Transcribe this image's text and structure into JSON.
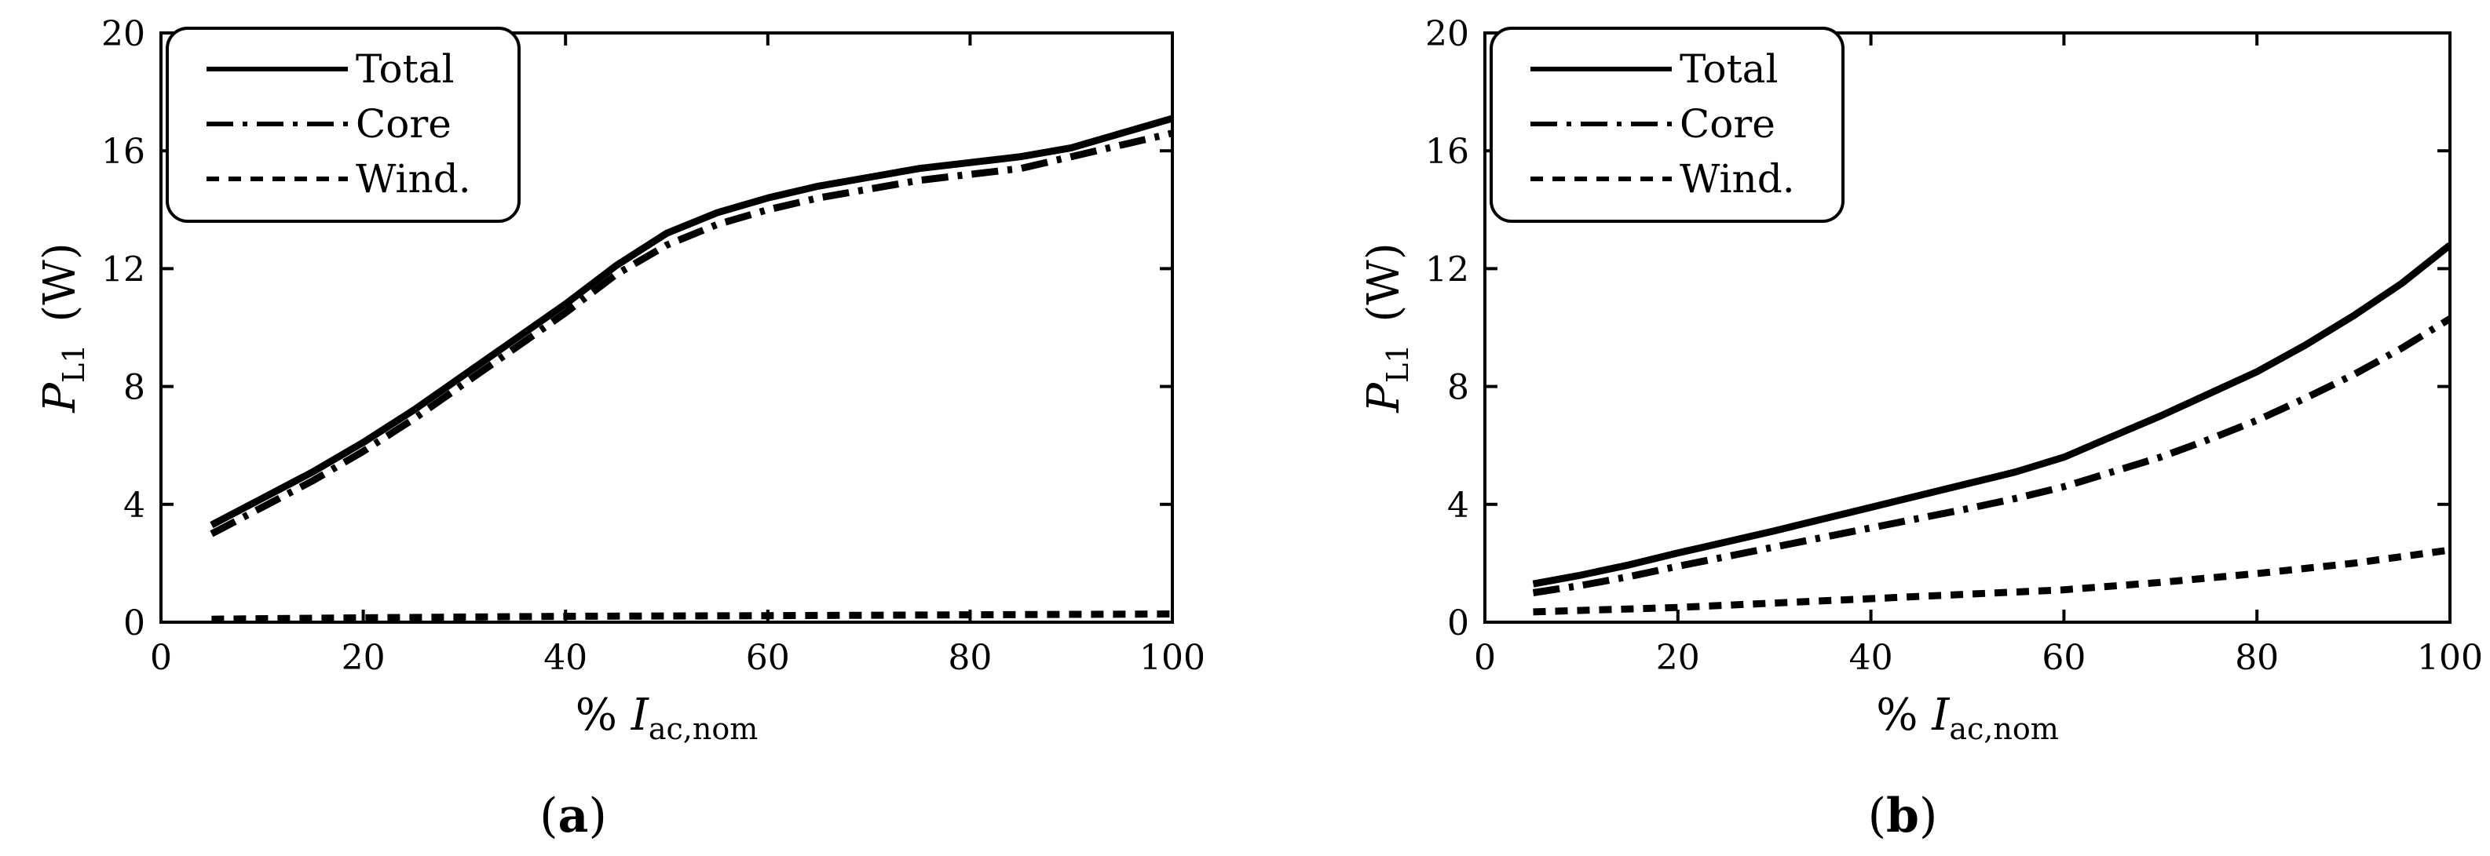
{
  "chart_data": [
    {
      "type": "line",
      "panel_label": "a",
      "ylabel": {
        "main": "P",
        "sub": "L1",
        "unit": "(W)"
      },
      "xlabel": {
        "prefix": "%",
        "main": "I",
        "sub": "ac,nom"
      },
      "xlim": [
        0,
        100
      ],
      "ylim": [
        0,
        20
      ],
      "xticks": [
        "0",
        "20",
        "40",
        "60",
        "80",
        "100"
      ],
      "yticks": [
        "0",
        "4",
        "8",
        "12",
        "16",
        "20"
      ],
      "legend_position": "top-left",
      "series": [
        {
          "name": "Total",
          "style": "solid",
          "x": [
            5,
            10,
            15,
            20,
            25,
            30,
            35,
            40,
            45,
            50,
            55,
            60,
            65,
            70,
            75,
            80,
            85,
            90,
            95,
            100
          ],
          "y": [
            3.3,
            4.2,
            5.1,
            6.1,
            7.2,
            8.4,
            9.6,
            10.8,
            12.1,
            13.2,
            13.9,
            14.4,
            14.8,
            15.1,
            15.4,
            15.6,
            15.8,
            16.1,
            16.6,
            17.1
          ]
        },
        {
          "name": "Core",
          "style": "dashdot",
          "x": [
            5,
            10,
            15,
            20,
            25,
            30,
            35,
            40,
            45,
            50,
            55,
            60,
            65,
            70,
            75,
            80,
            85,
            90,
            95,
            100
          ],
          "y": [
            3.0,
            3.9,
            4.8,
            5.8,
            6.9,
            8.1,
            9.3,
            10.5,
            11.8,
            12.8,
            13.5,
            14.0,
            14.4,
            14.7,
            15.0,
            15.2,
            15.4,
            15.8,
            16.2,
            16.6
          ]
        },
        {
          "name": "Wind.",
          "style": "dashed",
          "x": [
            5,
            20,
            40,
            60,
            80,
            100
          ],
          "y": [
            0.1,
            0.15,
            0.2,
            0.22,
            0.25,
            0.28
          ]
        }
      ]
    },
    {
      "type": "line",
      "panel_label": "b",
      "ylabel": {
        "main": "P",
        "sub": "L1",
        "unit": "(W)"
      },
      "xlabel": {
        "prefix": "%",
        "main": "I",
        "sub": "ac,nom"
      },
      "xlim": [
        0,
        100
      ],
      "ylim": [
        0,
        20
      ],
      "xticks": [
        "0",
        "20",
        "40",
        "60",
        "80",
        "100"
      ],
      "yticks": [
        "0",
        "4",
        "8",
        "12",
        "16",
        "20"
      ],
      "legend_position": "top-left",
      "series": [
        {
          "name": "Total",
          "style": "solid",
          "x": [
            5,
            10,
            15,
            20,
            30,
            40,
            50,
            55,
            60,
            65,
            70,
            75,
            80,
            85,
            90,
            95,
            100
          ],
          "y": [
            1.3,
            1.6,
            1.95,
            2.35,
            3.1,
            3.9,
            4.7,
            5.1,
            5.6,
            6.3,
            7.0,
            7.75,
            8.5,
            9.4,
            10.4,
            11.5,
            12.8
          ]
        },
        {
          "name": "Core",
          "style": "dashdot",
          "x": [
            5,
            10,
            15,
            20,
            30,
            40,
            50,
            55,
            60,
            65,
            70,
            75,
            80,
            85,
            90,
            95,
            100
          ],
          "y": [
            1.0,
            1.25,
            1.55,
            1.9,
            2.55,
            3.2,
            3.85,
            4.2,
            4.6,
            5.1,
            5.6,
            6.2,
            6.85,
            7.6,
            8.4,
            9.3,
            10.3
          ]
        },
        {
          "name": "Wind.",
          "style": "dashed",
          "x": [
            5,
            20,
            40,
            60,
            70,
            80,
            90,
            100
          ],
          "y": [
            0.35,
            0.5,
            0.8,
            1.1,
            1.35,
            1.65,
            2.0,
            2.45
          ]
        }
      ]
    }
  ]
}
